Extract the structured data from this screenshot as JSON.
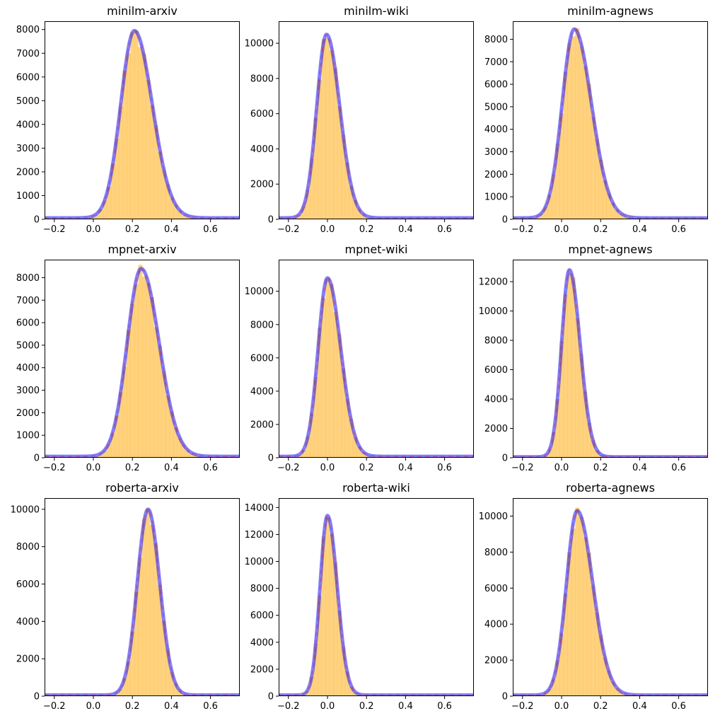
{
  "colors": {
    "histogram": "#ffa500",
    "fit_line": "#0000ff",
    "dashes": "#ff0000",
    "axes": "#000000",
    "background": "#ffffff"
  },
  "chart_data": [
    {
      "type": "histogram+line",
      "title": "minilm-arxiv",
      "xlim": [
        -0.25,
        0.75
      ],
      "ylim": [
        0,
        8350
      ],
      "xticks": [
        -0.2,
        0.0,
        0.2,
        0.4,
        0.6
      ],
      "xtick_labels": [
        "−0.2",
        "0.0",
        "0.2",
        "0.4",
        "0.6"
      ],
      "yticks": [
        0,
        1000,
        2000,
        3000,
        4000,
        5000,
        6000,
        7000,
        8000
      ],
      "fit": {
        "peak_x": 0.21,
        "peak_y": 7950,
        "sigma_left": 0.07,
        "sigma_right": 0.092,
        "tail": 60
      },
      "bin_width": 0.02
    },
    {
      "type": "histogram+line",
      "title": "minilm-wiki",
      "xlim": [
        -0.25,
        0.75
      ],
      "ylim": [
        0,
        11250
      ],
      "xticks": [
        -0.2,
        0.0,
        0.2,
        0.4,
        0.6
      ],
      "xtick_labels": [
        "−0.2",
        "0.0",
        "0.2",
        "0.4",
        "0.6"
      ],
      "yticks": [
        0,
        2000,
        4000,
        6000,
        8000,
        10000
      ],
      "fit": {
        "peak_x": -0.005,
        "peak_y": 10500,
        "sigma_left": 0.05,
        "sigma_right": 0.068,
        "tail": 80
      },
      "bin_width": 0.02
    },
    {
      "type": "histogram+line",
      "title": "minilm-agnews",
      "xlim": [
        -0.25,
        0.75
      ],
      "ylim": [
        0,
        8800
      ],
      "xticks": [
        -0.2,
        0.0,
        0.2,
        0.4,
        0.6
      ],
      "xtick_labels": [
        "−0.2",
        "0.0",
        "0.2",
        "0.4",
        "0.6"
      ],
      "yticks": [
        0,
        1000,
        2000,
        3000,
        4000,
        5000,
        6000,
        7000,
        8000
      ],
      "fit": {
        "peak_x": 0.065,
        "peak_y": 8450,
        "sigma_left": 0.062,
        "sigma_right": 0.088,
        "tail": 60
      },
      "bin_width": 0.02
    },
    {
      "type": "histogram+line",
      "title": "mpnet-arxiv",
      "xlim": [
        -0.25,
        0.75
      ],
      "ylim": [
        0,
        8800
      ],
      "xticks": [
        -0.2,
        0.0,
        0.2,
        0.4,
        0.6
      ],
      "xtick_labels": [
        "−0.2",
        "0.0",
        "0.2",
        "0.4",
        "0.6"
      ],
      "yticks": [
        0,
        1000,
        2000,
        3000,
        4000,
        5000,
        6000,
        7000,
        8000
      ],
      "fit": {
        "peak_x": 0.245,
        "peak_y": 8400,
        "sigma_left": 0.072,
        "sigma_right": 0.092,
        "tail": 60
      },
      "bin_width": 0.02
    },
    {
      "type": "histogram+line",
      "title": "mpnet-wiki",
      "xlim": [
        -0.25,
        0.75
      ],
      "ylim": [
        0,
        11900
      ],
      "xticks": [
        -0.2,
        0.0,
        0.2,
        0.4,
        0.6
      ],
      "xtick_labels": [
        "−0.2",
        "0.0",
        "0.2",
        "0.4",
        "0.6"
      ],
      "yticks": [
        0,
        2000,
        4000,
        6000,
        8000,
        10000
      ],
      "fit": {
        "peak_x": 0.0,
        "peak_y": 10800,
        "sigma_left": 0.048,
        "sigma_right": 0.068,
        "tail": 80
      },
      "bin_width": 0.02
    },
    {
      "type": "histogram+line",
      "title": "mpnet-agnews",
      "xlim": [
        -0.25,
        0.75
      ],
      "ylim": [
        0,
        13500
      ],
      "xticks": [
        -0.2,
        0.0,
        0.2,
        0.4,
        0.6
      ],
      "xtick_labels": [
        "−0.2",
        "0.0",
        "0.2",
        "0.4",
        "0.6"
      ],
      "yticks": [
        0,
        2000,
        4000,
        6000,
        8000,
        10000,
        12000
      ],
      "fit": {
        "peak_x": 0.04,
        "peak_y": 12800,
        "sigma_left": 0.04,
        "sigma_right": 0.055,
        "tail": 60
      },
      "bin_width": 0.02
    },
    {
      "type": "histogram+line",
      "title": "roberta-arxiv",
      "xlim": [
        -0.25,
        0.75
      ],
      "ylim": [
        0,
        10600
      ],
      "xticks": [
        -0.2,
        0.0,
        0.2,
        0.4,
        0.6
      ],
      "xtick_labels": [
        "−0.2",
        "0.0",
        "0.2",
        "0.4",
        "0.6"
      ],
      "yticks": [
        0,
        2000,
        4000,
        6000,
        8000,
        10000
      ],
      "fit": {
        "peak_x": 0.28,
        "peak_y": 10000,
        "sigma_left": 0.055,
        "sigma_right": 0.06,
        "tail": 60
      },
      "bin_width": 0.02
    },
    {
      "type": "histogram+line",
      "title": "roberta-wiki",
      "xlim": [
        -0.25,
        0.75
      ],
      "ylim": [
        0,
        14700
      ],
      "xticks": [
        -0.2,
        0.0,
        0.2,
        0.4,
        0.6
      ],
      "xtick_labels": [
        "−0.2",
        "0.0",
        "0.2",
        "0.4",
        "0.6"
      ],
      "yticks": [
        0,
        2000,
        4000,
        6000,
        8000,
        10000,
        12000,
        14000
      ],
      "fit": {
        "peak_x": 0.0,
        "peak_y": 13400,
        "sigma_left": 0.038,
        "sigma_right": 0.05,
        "tail": 80
      },
      "bin_width": 0.02
    },
    {
      "type": "histogram+line",
      "title": "roberta-agnews",
      "xlim": [
        -0.25,
        0.75
      ],
      "ylim": [
        0,
        11000
      ],
      "xticks": [
        -0.2,
        0.0,
        0.2,
        0.4,
        0.6
      ],
      "xtick_labels": [
        "−0.2",
        "0.0",
        "0.2",
        "0.4",
        "0.6"
      ],
      "yticks": [
        0,
        2000,
        4000,
        6000,
        8000,
        10000
      ],
      "fit": {
        "peak_x": 0.08,
        "peak_y": 10300,
        "sigma_left": 0.055,
        "sigma_right": 0.08,
        "tail": 60
      },
      "bin_width": 0.02
    }
  ]
}
